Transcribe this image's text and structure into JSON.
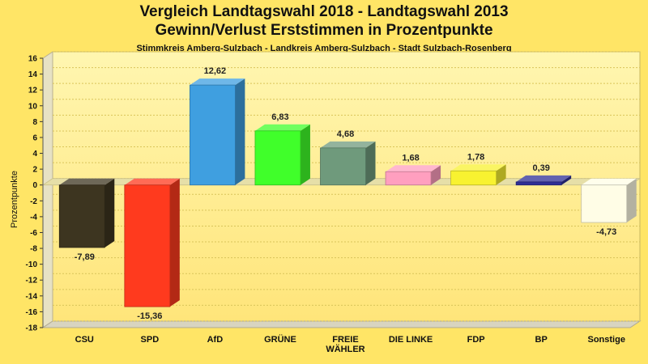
{
  "chart_data": {
    "type": "bar",
    "title": "Vergleich Landtagswahl 2018 - Landtagswahl 2013",
    "subtitle": "Gewinn/Verlust Erststimmen in Prozentpunkte",
    "caption": "Stimmkreis Amberg-Sulzbach - Landkreis Amberg-Sulzbach - Stadt Sulzbach-Rosenberg",
    "ylabel": "Prozentpunkte",
    "xlabel": "",
    "ylim": [
      -18,
      16
    ],
    "yticks": [
      16,
      14,
      12,
      10,
      8,
      6,
      4,
      2,
      0,
      -2,
      -4,
      -6,
      -8,
      -10,
      -12,
      -14,
      -16,
      -18
    ],
    "categories": [
      [
        "CSU"
      ],
      [
        "SPD"
      ],
      [
        "AfD"
      ],
      [
        "GRÜNE"
      ],
      [
        "FREIE",
        "WÄHLER"
      ],
      [
        "DIE LINKE"
      ],
      [
        "FDP"
      ],
      [
        "BP"
      ],
      [
        "Sonstige"
      ]
    ],
    "values": [
      -7.89,
      -15.36,
      12.62,
      6.83,
      4.68,
      1.68,
      1.78,
      0.39,
      -4.73
    ],
    "value_labels": [
      "-7,89",
      "-15,36",
      "12,62",
      "6,83",
      "4,68",
      "1,68",
      "1,78",
      "0,39",
      "-4,73"
    ],
    "colors": [
      "#3D3520",
      "#FF3A1E",
      "#3F9FE0",
      "#40FF2A",
      "#6F9A7C",
      "#FF9FBF",
      "#F8F230",
      "#2E2E96",
      "#FFFDE6"
    ],
    "grid": true
  }
}
